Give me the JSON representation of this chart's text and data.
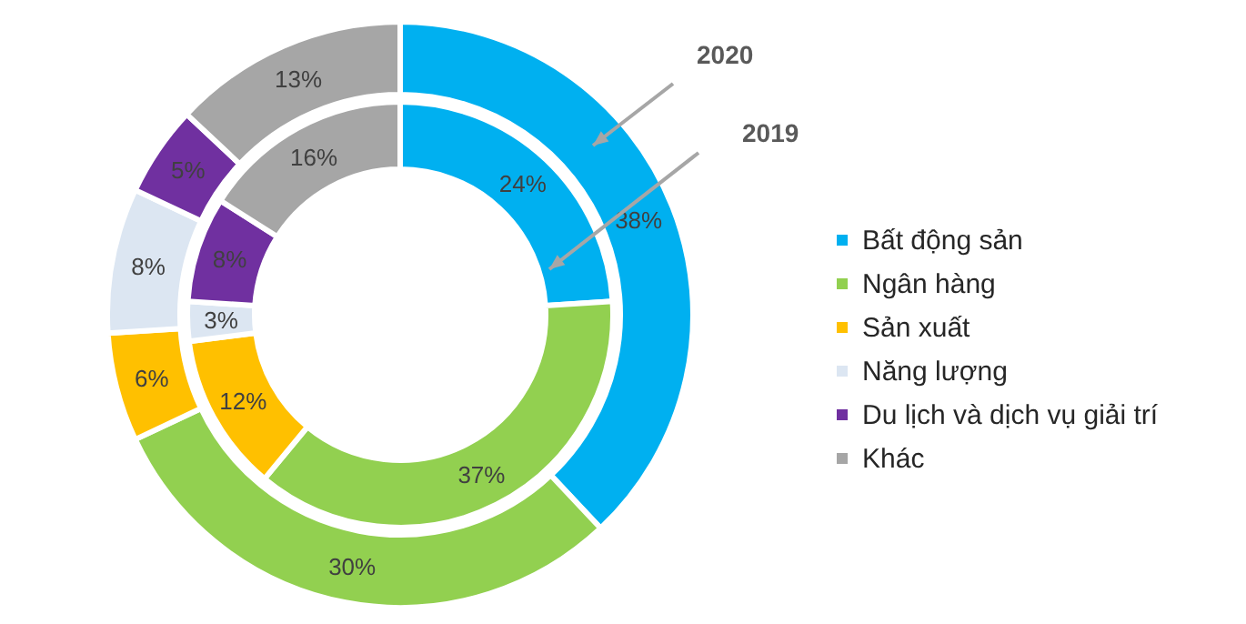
{
  "chart_data": {
    "type": "donut",
    "categories": [
      "Bất động sản",
      "Ngân hàng",
      "Sản xuất",
      "Năng lượng",
      "Du lịch và dịch vụ giải trí",
      "Khác"
    ],
    "colors": [
      "#00b0f0",
      "#92d050",
      "#ffc000",
      "#dce6f2",
      "#7030a0",
      "#a6a6a6"
    ],
    "series": [
      {
        "name": "2020",
        "values": [
          38,
          30,
          6,
          8,
          5,
          13
        ],
        "value_labels": [
          "38%",
          "30%",
          "6%",
          "8%",
          "5%",
          "13%"
        ]
      },
      {
        "name": "2019",
        "values": [
          24,
          37,
          12,
          3,
          8,
          16
        ],
        "value_labels": [
          "24%",
          "37%",
          "12%",
          "3%",
          "8%",
          "16%"
        ]
      }
    ],
    "legend": "right"
  }
}
